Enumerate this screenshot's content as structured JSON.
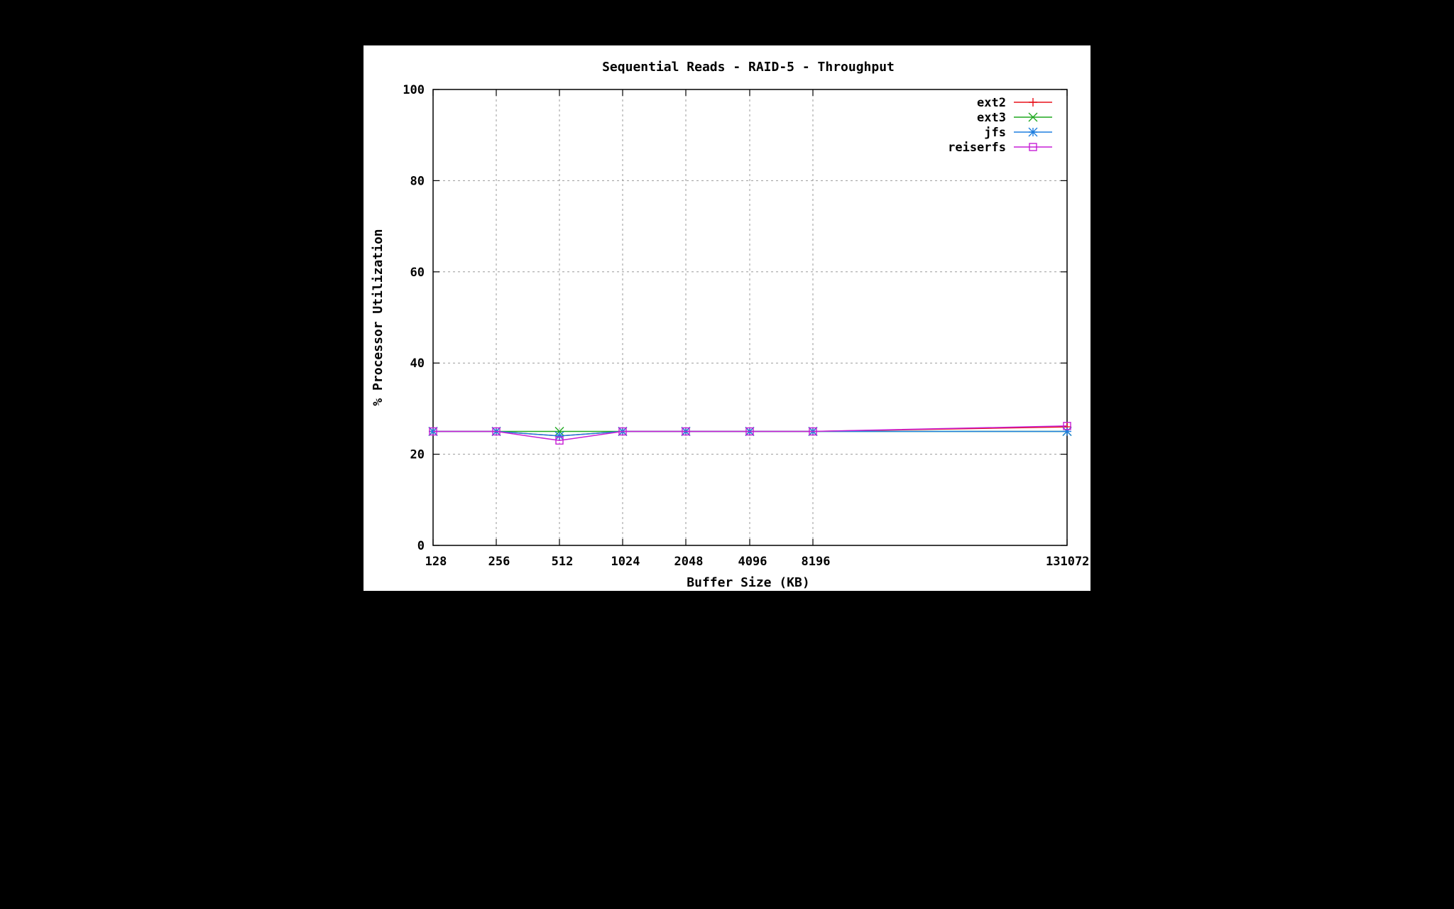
{
  "chart_data": {
    "type": "line",
    "title": "Sequential Reads - RAID-5 - Throughput",
    "xlabel": "Buffer Size (KB)",
    "ylabel": "% Processor Utilization",
    "categories": [
      "128",
      "256",
      "512",
      "1024",
      "2048",
      "4096",
      "8196",
      "131072"
    ],
    "ylim": [
      0,
      100
    ],
    "yticks": [
      "0",
      "20",
      "40",
      "60",
      "80",
      "100"
    ],
    "grid": true,
    "legend_position": "top-right",
    "series": [
      {
        "name": "ext2",
        "color": "#e8101a",
        "marker": "plus",
        "values": [
          25,
          25,
          24,
          25,
          25,
          25,
          25,
          26
        ]
      },
      {
        "name": "ext3",
        "color": "#1fa91f",
        "marker": "cross",
        "values": [
          25,
          25,
          25,
          25,
          25,
          25,
          25,
          25
        ]
      },
      {
        "name": "jfs",
        "color": "#1f7fe0",
        "marker": "star",
        "values": [
          25,
          25,
          24,
          25,
          25,
          25,
          25,
          25
        ]
      },
      {
        "name": "reiserfs",
        "color": "#c71fd6",
        "marker": "square",
        "values": [
          25,
          25,
          23,
          25,
          25,
          25,
          25,
          26.2
        ]
      }
    ]
  }
}
